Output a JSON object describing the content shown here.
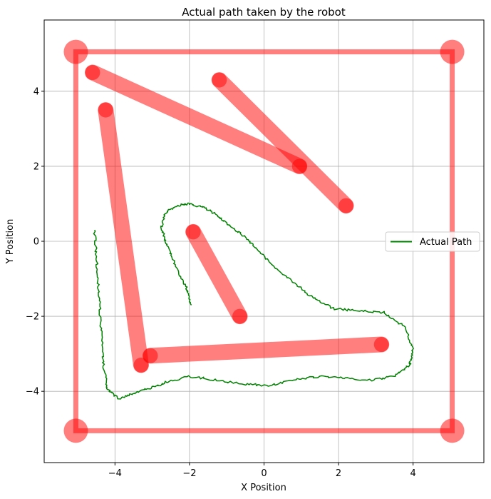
{
  "chart_data": {
    "type": "line",
    "title": "Actual path taken by the robot",
    "xlabel": "X Position",
    "ylabel": "Y Position",
    "xlim": [
      -5.9,
      5.9
    ],
    "ylim": [
      -5.9,
      5.9
    ],
    "xticks": [
      -4,
      -2,
      0,
      2,
      4
    ],
    "yticks": [
      -4,
      -2,
      0,
      2,
      4
    ],
    "grid": true,
    "legend_position": "center-right",
    "colors": {
      "path": "#008000",
      "obstacle": "#ff0000",
      "grid": "#b0b0b0"
    },
    "series": [
      {
        "name": "Actual Path",
        "x": [
          -1.95,
          -2.1,
          -2.4,
          -2.6,
          -2.75,
          -2.65,
          -2.35,
          -2.05,
          -1.6,
          -1.2,
          -0.9,
          -0.55,
          -0.2,
          0.3,
          0.8,
          1.3,
          1.9,
          2.5,
          3.2,
          3.8,
          4.0,
          3.9,
          3.5,
          2.9,
          2.2,
          1.5,
          0.8,
          0.1,
          -0.6,
          -1.3,
          -2.0,
          -2.6,
          -3.0,
          -3.5,
          -3.9,
          -4.2,
          -4.3,
          -4.35,
          -4.4,
          -4.45,
          -4.5,
          -4.55
        ],
        "y": [
          -1.7,
          -1.2,
          -0.6,
          -0.1,
          0.35,
          0.75,
          0.95,
          1.0,
          0.9,
          0.65,
          0.4,
          0.15,
          -0.2,
          -0.7,
          -1.1,
          -1.5,
          -1.8,
          -1.85,
          -1.9,
          -2.3,
          -2.9,
          -3.3,
          -3.6,
          -3.7,
          -3.65,
          -3.6,
          -3.7,
          -3.85,
          -3.8,
          -3.7,
          -3.6,
          -3.75,
          -3.9,
          -4.05,
          -4.2,
          -3.95,
          -3.4,
          -2.7,
          -1.9,
          -1.1,
          -0.4,
          0.3
        ]
      }
    ],
    "obstacles": {
      "boundary": [
        [
          -5.05,
          5.05
        ],
        [
          5.05,
          5.05
        ],
        [
          5.05,
          -5.05
        ],
        [
          -5.05,
          -5.05
        ]
      ],
      "segments": [
        {
          "start": [
            -4.6,
            4.5
          ],
          "end": [
            0.95,
            2.0
          ]
        },
        {
          "start": [
            -1.2,
            4.3
          ],
          "end": [
            2.2,
            0.95
          ]
        },
        {
          "start": [
            -4.25,
            3.5
          ],
          "end": [
            -3.3,
            -3.3
          ]
        },
        {
          "start": [
            -3.05,
            -3.05
          ],
          "end": [
            3.15,
            -2.75
          ]
        },
        {
          "start": [
            -1.9,
            0.25
          ],
          "end": [
            -0.65,
            -2.0
          ]
        }
      ]
    }
  }
}
